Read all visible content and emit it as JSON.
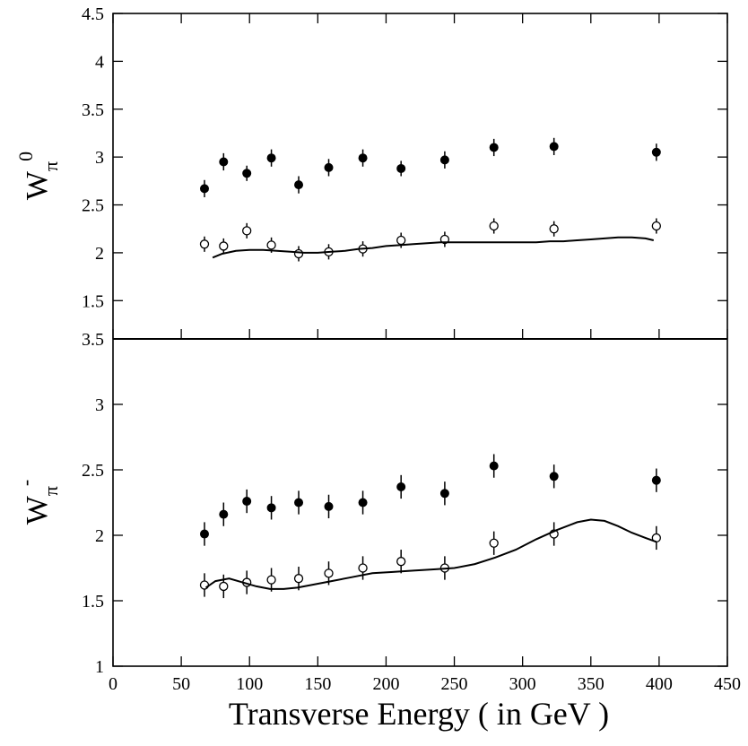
{
  "chart_data": {
    "type": "scatter",
    "xlabel": "Transverse Energy ( in GeV )",
    "xlim": [
      0,
      450
    ],
    "xticks": [
      0,
      50,
      100,
      150,
      200,
      250,
      300,
      350,
      400,
      450
    ],
    "panels": [
      {
        "ylabel": {
          "main": "W",
          "sub": "π",
          "sup": "0"
        },
        "ylim": [
          1.1,
          4.5
        ],
        "yticks": [
          1.5,
          2,
          2.5,
          3,
          3.5,
          4,
          4.5
        ],
        "series": [
          {
            "style": "filled",
            "x": [
              67,
              81,
              98,
              116,
              136,
              158,
              183,
              211,
              243,
              279,
              323,
              398
            ],
            "y": [
              2.67,
              2.95,
              2.83,
              2.99,
              2.71,
              2.89,
              2.99,
              2.88,
              2.97,
              3.1,
              3.11,
              3.05
            ],
            "err": [
              0.09,
              0.09,
              0.08,
              0.09,
              0.09,
              0.09,
              0.09,
              0.08,
              0.09,
              0.09,
              0.09,
              0.09
            ]
          },
          {
            "style": "open",
            "x": [
              67,
              81,
              98,
              116,
              136,
              158,
              183,
              211,
              243,
              279,
              323,
              398
            ],
            "y": [
              2.09,
              2.07,
              2.23,
              2.08,
              1.99,
              2.01,
              2.04,
              2.13,
              2.14,
              2.28,
              2.25,
              2.28
            ],
            "err": [
              0.08,
              0.08,
              0.08,
              0.08,
              0.08,
              0.08,
              0.08,
              0.08,
              0.08,
              0.08,
              0.08,
              0.08
            ]
          },
          {
            "style": "curve",
            "x": [
              73,
              80,
              90,
              100,
              110,
              120,
              130,
              140,
              150,
              160,
              170,
              180,
              190,
              200,
              210,
              220,
              230,
              240,
              250,
              260,
              270,
              280,
              290,
              300,
              310,
              320,
              330,
              340,
              350,
              360,
              370,
              380,
              390,
              396
            ],
            "y": [
              1.95,
              1.99,
              2.02,
              2.03,
              2.03,
              2.02,
              2.01,
              2.0,
              2.0,
              2.01,
              2.02,
              2.04,
              2.05,
              2.07,
              2.08,
              2.09,
              2.1,
              2.11,
              2.11,
              2.11,
              2.11,
              2.11,
              2.11,
              2.11,
              2.11,
              2.12,
              2.12,
              2.13,
              2.14,
              2.15,
              2.16,
              2.16,
              2.15,
              2.13
            ]
          }
        ]
      },
      {
        "ylabel": {
          "main": "W",
          "sub": "π",
          "sup": "-"
        },
        "ylim": [
          1.0,
          3.5
        ],
        "yticks": [
          1,
          1.5,
          2,
          2.5,
          3,
          3.5
        ],
        "series": [
          {
            "style": "filled",
            "x": [
              67,
              81,
              98,
              116,
              136,
              158,
              183,
              211,
              243,
              279,
              323,
              398
            ],
            "y": [
              2.01,
              2.16,
              2.26,
              2.21,
              2.25,
              2.22,
              2.25,
              2.37,
              2.32,
              2.53,
              2.45,
              2.42
            ],
            "err": [
              0.09,
              0.09,
              0.09,
              0.09,
              0.09,
              0.09,
              0.09,
              0.09,
              0.09,
              0.09,
              0.09,
              0.09
            ]
          },
          {
            "style": "open",
            "x": [
              67,
              81,
              98,
              116,
              136,
              158,
              183,
              211,
              243,
              279,
              323,
              398
            ],
            "y": [
              1.62,
              1.61,
              1.64,
              1.66,
              1.67,
              1.71,
              1.75,
              1.8,
              1.75,
              1.94,
              2.01,
              1.98
            ],
            "err": [
              0.09,
              0.09,
              0.09,
              0.09,
              0.09,
              0.09,
              0.09,
              0.09,
              0.09,
              0.09,
              0.09,
              0.09
            ]
          },
          {
            "style": "curve",
            "x": [
              68,
              75,
              85,
              95,
              105,
              115,
              125,
              135,
              145,
              160,
              175,
              190,
              205,
              220,
              235,
              250,
              265,
              280,
              295,
              310,
              325,
              340,
              350,
              360,
              370,
              380,
              390,
              398
            ],
            "y": [
              1.6,
              1.65,
              1.67,
              1.64,
              1.61,
              1.59,
              1.59,
              1.6,
              1.62,
              1.65,
              1.68,
              1.71,
              1.72,
              1.73,
              1.74,
              1.75,
              1.78,
              1.83,
              1.89,
              1.97,
              2.04,
              2.1,
              2.12,
              2.11,
              2.07,
              2.02,
              1.98,
              1.95
            ]
          }
        ]
      }
    ]
  }
}
